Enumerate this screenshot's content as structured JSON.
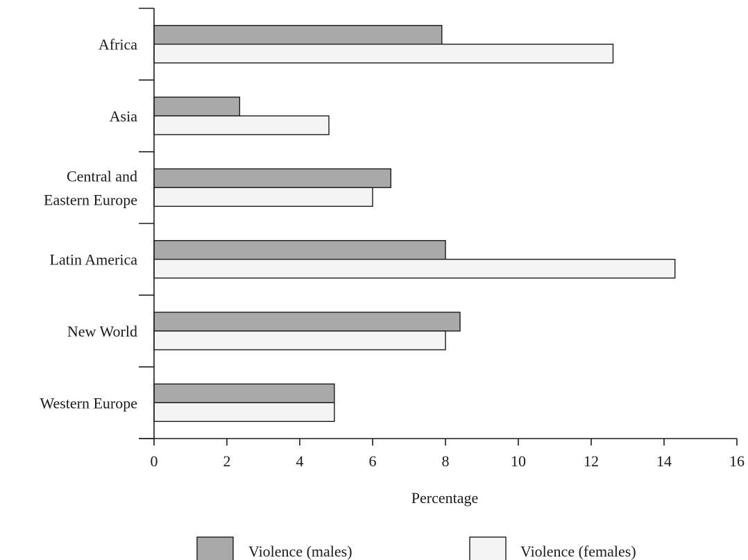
{
  "chart_data": {
    "type": "bar",
    "orientation": "horizontal",
    "title": "",
    "xlabel": "Percentage",
    "ylabel": "",
    "xlim": [
      0,
      16
    ],
    "xticks": [
      0,
      2,
      4,
      6,
      8,
      10,
      12,
      14,
      16
    ],
    "grid": false,
    "legend_position": "bottom",
    "categories": [
      "Africa",
      "Asia",
      "Central and Eastern Europe",
      "Latin America",
      "New World",
      "Western Europe"
    ],
    "category_lines": [
      [
        "Africa"
      ],
      [
        "Asia"
      ],
      [
        "Central and",
        "Eastern Europe"
      ],
      [
        "Latin America"
      ],
      [
        "New World"
      ],
      [
        "Western Europe"
      ]
    ],
    "series": [
      {
        "name": "Violence (males)",
        "color": "#a9a9a9",
        "values": [
          7.9,
          2.35,
          6.5,
          8.0,
          8.4,
          4.95
        ]
      },
      {
        "name": "Violence (females)",
        "color": "#f4f4f4",
        "values": [
          12.6,
          4.8,
          6.0,
          14.3,
          8.0,
          4.95
        ]
      }
    ]
  }
}
